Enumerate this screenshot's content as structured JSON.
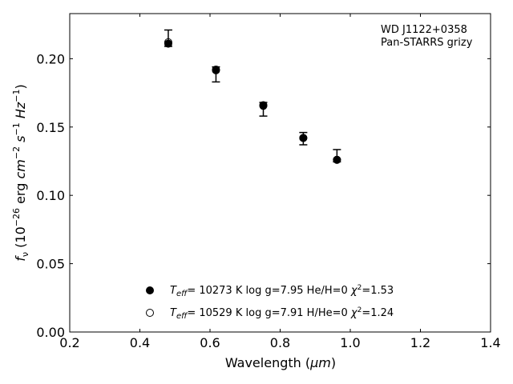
{
  "chart_data": {
    "type": "scatter",
    "xlabel_text": "Wavelength (",
    "xlabel_unit": "μm",
    "xlabel_close": ")",
    "ylabel_f": "f",
    "ylabel_sub": "ν",
    "ylabel_text": "(10",
    "ylabel_exp": "−26",
    "ylabel_erg": "erg",
    "ylabel_cm": "cm",
    "ylabel_cm_exp": "−2",
    "ylabel_s": "s",
    "ylabel_s_exp": "−1",
    "ylabel_hz": "Hz",
    "ylabel_hz_exp": "−1",
    "ylabel_close": ")",
    "xlim": [
      0.2,
      1.4
    ],
    "ylim": [
      0.0,
      0.233
    ],
    "xticks": [
      0.2,
      0.4,
      0.6,
      0.8,
      1.0,
      1.2,
      1.4
    ],
    "xtick_labels": [
      "0.2",
      "0.4",
      "0.6",
      "0.8",
      "1.0",
      "1.2",
      "1.4"
    ],
    "yticks": [
      0.0,
      0.05,
      0.1,
      0.15,
      0.2
    ],
    "ytick_labels": [
      "0.00",
      "0.05",
      "0.10",
      "0.15",
      "0.20"
    ],
    "annotation": [
      "WD J1122+0358",
      "Pan-STARRS grizy"
    ],
    "observed": {
      "x": [
        0.481,
        0.617,
        0.752,
        0.866,
        0.962
      ],
      "y": [
        0.2095,
        0.1895,
        0.163,
        0.1405,
        0.1255
      ],
      "yerr_low": [
        0.0005,
        0.0065,
        0.005,
        0.0035,
        0.001
      ],
      "yerr_high": [
        0.0115,
        0.0045,
        0.005,
        0.0055,
        0.008
      ]
    },
    "series": [
      {
        "teff_label": "T",
        "teff_sub": "eff",
        "desc": "= 10273 K  log g=7.95  He/H=0",
        "chi": "χ",
        "chi_sup": "2",
        "chi_val": "=1.53",
        "marker": "filled",
        "x": [
          0.481,
          0.617,
          0.752,
          0.866,
          0.962
        ],
        "y": [
          0.211,
          0.1915,
          0.1655,
          0.142,
          0.126
        ]
      },
      {
        "teff_label": "T",
        "teff_sub": "eff",
        "desc": "= 10529 K  log g=7.91  H/He=0",
        "chi": "χ",
        "chi_sup": "2",
        "chi_val": "=1.24",
        "marker": "open",
        "x": [
          0.481,
          0.617,
          0.752,
          0.866,
          0.962
        ],
        "y": [
          0.212,
          0.192,
          0.166,
          0.142,
          0.126
        ]
      }
    ],
    "legend_position": "lower-center",
    "grid": false
  }
}
